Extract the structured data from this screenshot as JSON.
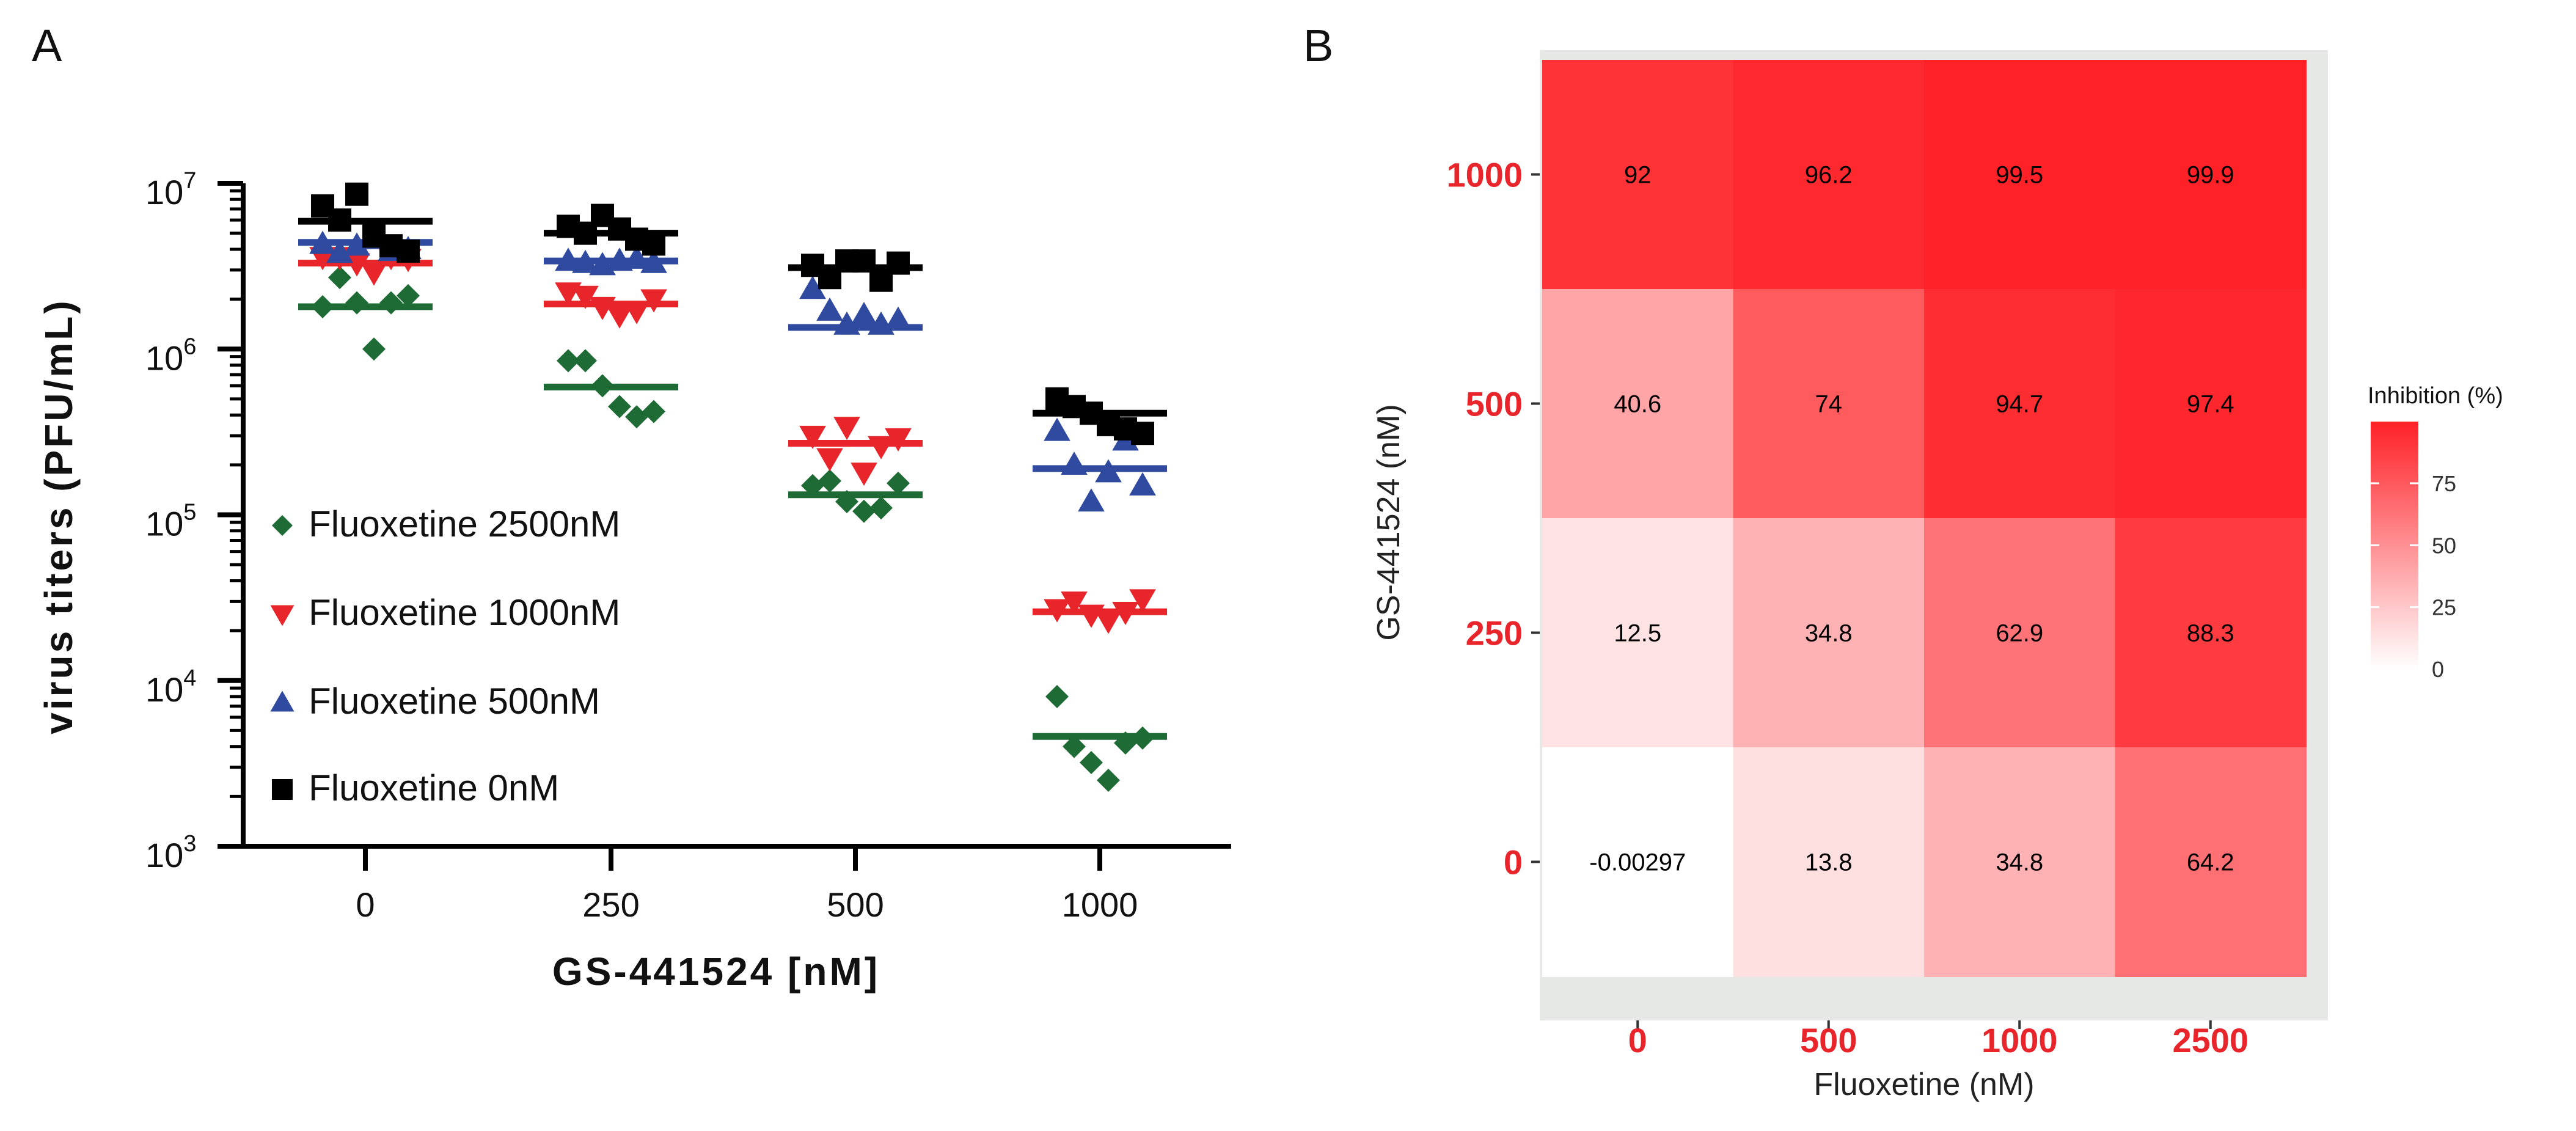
{
  "panel_a": {
    "label": "A"
  },
  "panel_b": {
    "label": "B"
  },
  "chart_data": [
    {
      "type": "scatter",
      "title": "",
      "xlabel": "GS-441524 [nM]",
      "ylabel": "virus titers (PFU/mL)",
      "yscale": "log",
      "ylim": [
        1000,
        10000000
      ],
      "yticks": [
        {
          "base": "10",
          "exp": "3"
        },
        {
          "base": "10",
          "exp": "4"
        },
        {
          "base": "10",
          "exp": "5"
        },
        {
          "base": "10",
          "exp": "6"
        },
        {
          "base": "10",
          "exp": "7"
        }
      ],
      "categories": [
        "0",
        "250",
        "500",
        "1000"
      ],
      "series": [
        {
          "name": "Fluoxetine 2500nM",
          "color": "#1f6b35",
          "marker": "diamond",
          "points": [
            [
              1800000,
              2700000,
              1900000,
              1000000,
              1900000,
              2100000
            ],
            [
              850000,
              850000,
              600000,
              450000,
              390000,
              420000
            ],
            [
              150000,
              160000,
              120000,
              105000,
              110000,
              155000
            ],
            [
              8000,
              4000,
              3200,
              2500,
              4200,
              4500
            ]
          ],
          "means": [
            1800000,
            590000,
            132000,
            4600
          ]
        },
        {
          "name": "Fluoxetine 1000nM",
          "color": "#e8252a",
          "marker": "triangle-down",
          "points": [
            [
              3600000,
              3600000,
              3300000,
              2900000,
              3600000,
              3500000
            ],
            [
              2200000,
              2100000,
              1800000,
              1600000,
              1700000,
              2000000
            ],
            [
              300000,
              220000,
              340000,
              180000,
              260000,
              290000
            ],
            [
              27000,
              30000,
              25000,
              23000,
              26000,
              31000
            ]
          ],
          "means": [
            3300000,
            1870000,
            270000,
            26000
          ]
        },
        {
          "name": "Fluoxetine 500nM",
          "color": "#2f4a9e",
          "marker": "triangle-up",
          "points": [
            [
              4300000,
              3800000,
              4200000,
              4600000,
              3900000,
              4000000
            ],
            [
              3400000,
              3300000,
              3200000,
              3400000,
              3500000,
              3300000
            ],
            [
              2300000,
              1700000,
              1400000,
              1600000,
              1400000,
              1500000
            ],
            [
              320000,
              200000,
              120000,
              180000,
              280000,
              150000
            ]
          ],
          "means": [
            4400000,
            3400000,
            1350000,
            190000
          ]
        },
        {
          "name": "Fluoxetine 0nM",
          "color": "#000000",
          "marker": "square",
          "points": [
            [
              7300000,
              6000000,
              8600000,
              4800000,
              4200000,
              3900000
            ],
            [
              5500000,
              5000000,
              6400000,
              5300000,
              4600000,
              4300000
            ],
            [
              3200000,
              2700000,
              3400000,
              3400000,
              2600000,
              3300000
            ],
            [
              500000,
              450000,
              410000,
              350000,
              330000,
              310000
            ]
          ],
          "means": [
            5900000,
            5000000,
            3100000,
            410000
          ]
        }
      ]
    },
    {
      "type": "heatmap",
      "title": "",
      "xlabel": "Fluoxetine (nM)",
      "ylabel": "GS-441524 (nM)",
      "x": [
        "0",
        "500",
        "1000",
        "2500"
      ],
      "y": [
        "1000",
        "500",
        "250",
        "0"
      ],
      "values": [
        [
          "92",
          "96.2",
          "99.5",
          "99.9"
        ],
        [
          "40.6",
          "74",
          "94.7",
          "97.4"
        ],
        [
          "12.5",
          "34.8",
          "62.9",
          "88.3"
        ],
        [
          "-0.00297",
          "13.8",
          "34.8",
          "64.2"
        ]
      ],
      "colorbar": {
        "title": "Inhibition (%)",
        "ticks": [
          "0",
          "25",
          "50",
          "75"
        ],
        "range": [
          0,
          100
        ],
        "low_color": "#ffffff",
        "high_color": "#fe2127"
      },
      "panel_background": "#e6e8e6"
    }
  ]
}
